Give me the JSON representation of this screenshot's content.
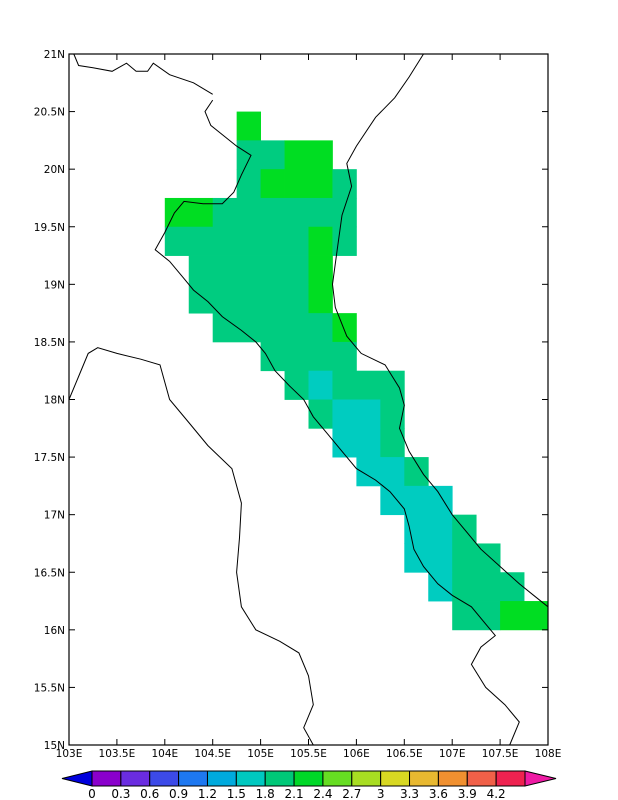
{
  "map": {
    "lon_range": [
      103,
      108
    ],
    "lat_range": [
      15,
      21
    ],
    "grid_step_deg": 0.25,
    "x_ticks": [
      "103E",
      "103.5E",
      "104E",
      "104.5E",
      "105E",
      "105.5E",
      "106E",
      "106.5E",
      "107E",
      "107.5E",
      "108E"
    ],
    "y_ticks": [
      "15N",
      "15.5N",
      "16N",
      "16.5N",
      "17N",
      "17.5N",
      "18N",
      "18.5N",
      "19N",
      "19.5N",
      "20N",
      "20.5N",
      "21N"
    ],
    "cell_colors": {
      "c1.5": "#00ccc0",
      "c1.8": "#00cc80",
      "c2.1": "#00dd22"
    },
    "cells": [
      {
        "lon0": 104.75,
        "lon1": 105.0,
        "lat0": 20.25,
        "lat1": 20.5,
        "c": "c2.1"
      },
      {
        "lon0": 104.75,
        "lon1": 105.25,
        "lat0": 20.0,
        "lat1": 20.25,
        "c": "c1.8"
      },
      {
        "lon0": 105.25,
        "lon1": 105.75,
        "lat0": 19.75,
        "lat1": 20.25,
        "c": "c2.1"
      },
      {
        "lon0": 104.75,
        "lon1": 105.0,
        "lat0": 19.75,
        "lat1": 20.0,
        "c": "c1.8"
      },
      {
        "lon0": 105.0,
        "lon1": 105.25,
        "lat0": 19.75,
        "lat1": 20.0,
        "c": "c2.1"
      },
      {
        "lon0": 105.75,
        "lon1": 106.0,
        "lat0": 19.75,
        "lat1": 20.0,
        "c": "c1.8"
      },
      {
        "lon0": 104.0,
        "lon1": 104.5,
        "lat0": 19.5,
        "lat1": 19.75,
        "c": "c2.1"
      },
      {
        "lon0": 104.5,
        "lon1": 106.0,
        "lat0": 19.5,
        "lat1": 19.75,
        "c": "c1.8"
      },
      {
        "lon0": 104.0,
        "lon1": 105.5,
        "lat0": 19.25,
        "lat1": 19.5,
        "c": "c1.8"
      },
      {
        "lon0": 105.5,
        "lon1": 105.75,
        "lat0": 19.25,
        "lat1": 19.5,
        "c": "c2.1"
      },
      {
        "lon0": 105.75,
        "lon1": 106.0,
        "lat0": 19.25,
        "lat1": 19.5,
        "c": "c1.8"
      },
      {
        "lon0": 104.25,
        "lon1": 105.5,
        "lat0": 19.0,
        "lat1": 19.25,
        "c": "c1.8"
      },
      {
        "lon0": 105.5,
        "lon1": 105.75,
        "lat0": 19.0,
        "lat1": 19.25,
        "c": "c2.1"
      },
      {
        "lon0": 104.25,
        "lon1": 105.5,
        "lat0": 18.75,
        "lat1": 19.0,
        "c": "c1.8"
      },
      {
        "lon0": 105.5,
        "lon1": 105.75,
        "lat0": 18.75,
        "lat1": 19.0,
        "c": "c2.1"
      },
      {
        "lon0": 104.5,
        "lon1": 105.75,
        "lat0": 18.5,
        "lat1": 18.75,
        "c": "c1.8"
      },
      {
        "lon0": 105.75,
        "lon1": 106.0,
        "lat0": 18.5,
        "lat1": 18.75,
        "c": "c2.1"
      },
      {
        "lon0": 105.0,
        "lon1": 106.0,
        "lat0": 18.25,
        "lat1": 18.5,
        "c": "c1.8"
      },
      {
        "lon0": 105.25,
        "lon1": 105.5,
        "lat0": 18.0,
        "lat1": 18.25,
        "c": "c1.8"
      },
      {
        "lon0": 105.5,
        "lon1": 105.75,
        "lat0": 18.0,
        "lat1": 18.25,
        "c": "c1.5"
      },
      {
        "lon0": 105.75,
        "lon1": 106.5,
        "lat0": 18.0,
        "lat1": 18.25,
        "c": "c1.8"
      },
      {
        "lon0": 105.5,
        "lon1": 105.75,
        "lat0": 17.75,
        "lat1": 18.0,
        "c": "c1.8"
      },
      {
        "lon0": 105.75,
        "lon1": 106.25,
        "lat0": 17.75,
        "lat1": 18.0,
        "c": "c1.5"
      },
      {
        "lon0": 106.25,
        "lon1": 106.5,
        "lat0": 17.75,
        "lat1": 18.0,
        "c": "c1.8"
      },
      {
        "lon0": 105.75,
        "lon1": 106.25,
        "lat0": 17.5,
        "lat1": 17.75,
        "c": "c1.5"
      },
      {
        "lon0": 106.25,
        "lon1": 106.5,
        "lat0": 17.5,
        "lat1": 17.75,
        "c": "c1.8"
      },
      {
        "lon0": 106.0,
        "lon1": 106.5,
        "lat0": 17.25,
        "lat1": 17.5,
        "c": "c1.5"
      },
      {
        "lon0": 106.5,
        "lon1": 106.75,
        "lat0": 17.25,
        "lat1": 17.5,
        "c": "c1.8"
      },
      {
        "lon0": 106.25,
        "lon1": 107.0,
        "lat0": 17.0,
        "lat1": 17.25,
        "c": "c1.5"
      },
      {
        "lon0": 106.5,
        "lon1": 107.0,
        "lat0": 16.75,
        "lat1": 17.0,
        "c": "c1.5"
      },
      {
        "lon0": 107.0,
        "lon1": 107.25,
        "lat0": 16.75,
        "lat1": 17.0,
        "c": "c1.8"
      },
      {
        "lon0": 106.5,
        "lon1": 107.0,
        "lat0": 16.5,
        "lat1": 16.75,
        "c": "c1.5"
      },
      {
        "lon0": 107.0,
        "lon1": 107.5,
        "lat0": 16.5,
        "lat1": 16.75,
        "c": "c1.8"
      },
      {
        "lon0": 106.75,
        "lon1": 107.0,
        "lat0": 16.25,
        "lat1": 16.5,
        "c": "c1.5"
      },
      {
        "lon0": 107.0,
        "lon1": 107.75,
        "lat0": 16.25,
        "lat1": 16.5,
        "c": "c1.8"
      },
      {
        "lon0": 107.0,
        "lon1": 107.5,
        "lat0": 16.0,
        "lat1": 16.25,
        "c": "c1.8"
      },
      {
        "lon0": 107.5,
        "lon1": 108.0,
        "lat0": 16.0,
        "lat1": 16.25,
        "c": "c2.1"
      }
    ],
    "coastline": [
      [
        104.5,
        20.65
      ],
      [
        104.3,
        20.75
      ],
      [
        104.05,
        20.82
      ],
      [
        103.88,
        20.92
      ],
      [
        103.82,
        20.85
      ],
      [
        103.7,
        20.85
      ],
      [
        103.6,
        20.92
      ],
      [
        103.45,
        20.85
      ],
      [
        103.25,
        20.88
      ],
      [
        103.1,
        20.9
      ],
      [
        103.05,
        21.0
      ]
    ],
    "coast_main": [
      [
        106.7,
        21.0
      ],
      [
        106.55,
        20.8
      ],
      [
        106.4,
        20.62
      ],
      [
        106.2,
        20.45
      ],
      [
        106.0,
        20.2
      ],
      [
        105.9,
        20.05
      ],
      [
        105.95,
        19.85
      ],
      [
        105.85,
        19.6
      ],
      [
        105.8,
        19.3
      ],
      [
        105.75,
        19.0
      ],
      [
        105.78,
        18.8
      ],
      [
        105.9,
        18.55
      ],
      [
        106.05,
        18.4
      ],
      [
        106.3,
        18.3
      ],
      [
        106.45,
        18.1
      ],
      [
        106.5,
        17.95
      ],
      [
        106.45,
        17.75
      ],
      [
        106.55,
        17.55
      ],
      [
        106.7,
        17.35
      ],
      [
        106.85,
        17.2
      ],
      [
        107.0,
        17.0
      ],
      [
        107.15,
        16.85
      ],
      [
        107.3,
        16.7
      ],
      [
        107.5,
        16.55
      ],
      [
        107.7,
        16.4
      ],
      [
        107.85,
        16.3
      ],
      [
        108.0,
        16.2
      ]
    ],
    "border_west": [
      [
        104.5,
        20.6
      ],
      [
        104.42,
        20.5
      ],
      [
        104.48,
        20.38
      ],
      [
        104.6,
        20.3
      ],
      [
        104.75,
        20.2
      ],
      [
        104.9,
        20.12
      ],
      [
        104.8,
        19.95
      ],
      [
        104.72,
        19.8
      ],
      [
        104.6,
        19.7
      ],
      [
        104.4,
        19.7
      ],
      [
        104.2,
        19.72
      ],
      [
        104.1,
        19.62
      ],
      [
        104.0,
        19.45
      ],
      [
        103.9,
        19.3
      ],
      [
        104.05,
        19.2
      ],
      [
        104.2,
        19.05
      ],
      [
        104.3,
        18.95
      ],
      [
        104.45,
        18.85
      ],
      [
        104.6,
        18.72
      ],
      [
        104.8,
        18.6
      ],
      [
        104.95,
        18.5
      ],
      [
        105.05,
        18.4
      ],
      [
        105.15,
        18.25
      ],
      [
        105.3,
        18.12
      ],
      [
        105.45,
        18.0
      ],
      [
        105.55,
        17.85
      ],
      [
        105.7,
        17.7
      ],
      [
        105.85,
        17.55
      ],
      [
        106.0,
        17.4
      ],
      [
        106.2,
        17.3
      ],
      [
        106.35,
        17.2
      ],
      [
        106.5,
        17.05
      ],
      [
        106.55,
        16.9
      ],
      [
        106.6,
        16.7
      ],
      [
        106.7,
        16.55
      ],
      [
        106.85,
        16.4
      ],
      [
        107.0,
        16.3
      ],
      [
        107.2,
        16.2
      ],
      [
        107.35,
        16.05
      ],
      [
        107.45,
        15.95
      ],
      [
        107.3,
        15.85
      ],
      [
        107.2,
        15.7
      ],
      [
        107.35,
        15.5
      ],
      [
        107.55,
        15.35
      ],
      [
        107.7,
        15.2
      ],
      [
        107.6,
        15.0
      ]
    ],
    "border_laos_thai": [
      [
        103.0,
        18.0
      ],
      [
        103.1,
        18.2
      ],
      [
        103.2,
        18.4
      ],
      [
        103.3,
        18.45
      ],
      [
        103.5,
        18.4
      ],
      [
        103.75,
        18.35
      ],
      [
        103.95,
        18.3
      ],
      [
        104.05,
        18.0
      ],
      [
        104.25,
        17.8
      ],
      [
        104.45,
        17.6
      ],
      [
        104.7,
        17.4
      ],
      [
        104.8,
        17.1
      ],
      [
        104.78,
        16.8
      ],
      [
        104.75,
        16.5
      ],
      [
        104.8,
        16.2
      ],
      [
        104.95,
        16.0
      ],
      [
        105.2,
        15.9
      ],
      [
        105.4,
        15.8
      ],
      [
        105.5,
        15.6
      ],
      [
        105.55,
        15.35
      ],
      [
        105.45,
        15.15
      ],
      [
        105.55,
        15.0
      ]
    ],
    "colorbar": {
      "labels": [
        "0",
        "0.3",
        "0.6",
        "0.9",
        "1.2",
        "1.5",
        "1.8",
        "2.1",
        "2.4",
        "2.7",
        "3",
        "3.3",
        "3.6",
        "3.9",
        "4.2"
      ],
      "colors": [
        "#0000dd",
        "#8a00cc",
        "#6a2ce0",
        "#3c4ae8",
        "#1e78f0",
        "#00aadd",
        "#00c8c0",
        "#00c878",
        "#00d828",
        "#66dd22",
        "#a8dd22",
        "#d8d822",
        "#e8b830",
        "#f09030",
        "#f06048",
        "#ee2250",
        "#ee1ba4"
      ]
    }
  }
}
